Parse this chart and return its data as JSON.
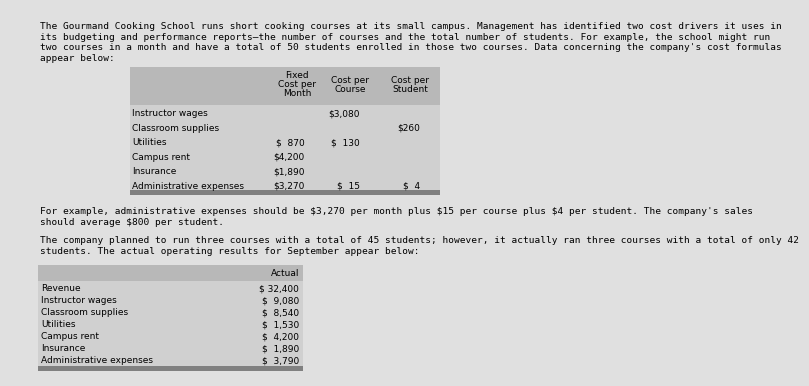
{
  "intro_text_lines": [
    "The Gourmand Cooking School runs short cooking courses at its small campus. Management has identified two cost drivers it uses in",
    "its budgeting and performance reports—the number of courses and the total number of students. For example, the school might run",
    "two courses in a month and have a total of 50 students enrolled in those two courses. Data concerning the company's cost formulas",
    "appear below:"
  ],
  "table1_rows": [
    [
      "Instructor wages",
      "",
      "$3,080",
      ""
    ],
    [
      "Classroom supplies",
      "",
      "",
      "$260"
    ],
    [
      "Utilities",
      "$  870",
      "$  130",
      ""
    ],
    [
      "Campus rent",
      "$4,200",
      "",
      ""
    ],
    [
      "Insurance",
      "$1,890",
      "",
      ""
    ],
    [
      "Administrative expenses",
      "$3,270",
      "$  15",
      "$  4"
    ]
  ],
  "middle_text_lines": [
    "For example, administrative expenses should be $3,270 per month plus $15 per course plus $4 per student. The company's sales",
    "should average $800 per student."
  ],
  "middle_text2_lines": [
    "The company planned to run three courses with a total of 45 students; however, it actually ran three courses with a total of only 42",
    "students. The actual operating results for September appear below:"
  ],
  "table2_rows": [
    [
      "Revenue",
      "$ 32,400"
    ],
    [
      "Instructor wages",
      "$  9,080"
    ],
    [
      "Classroom supplies",
      "$  8,540"
    ],
    [
      "Utilities",
      "$  1,530"
    ],
    [
      "Campus rent",
      "$  4,200"
    ],
    [
      "Insurance",
      "$  1,890"
    ],
    [
      "Administrative expenses",
      "$  3,790"
    ]
  ],
  "bg_color": "#e0e0e0",
  "table_bg": "#d0d0d0",
  "table_header_bg": "#b8b8b8",
  "table_bottom_bar": "#808080",
  "text_color": "#000000",
  "font_size_body": 6.8,
  "font_size_table": 6.5
}
